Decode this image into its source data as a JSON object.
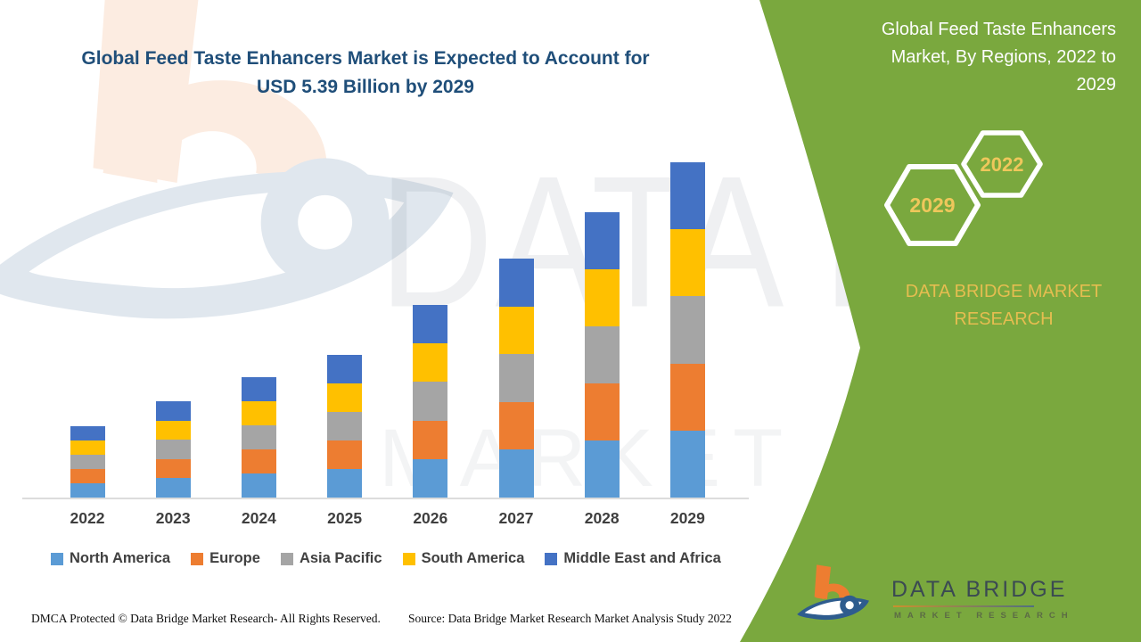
{
  "main_title": {
    "line1": "Global Feed Taste Enhancers Market is Expected to Account for",
    "line2": "USD 5.39 Billion by 2029"
  },
  "green_panel": {
    "bg_color": "#7aa83e",
    "title_lines": [
      "Global Feed Taste Enhancers",
      "Market, By Regions, 2022 to",
      "2029"
    ],
    "hexagons": [
      {
        "label": "2022"
      },
      {
        "label": "2029"
      }
    ],
    "hex_label_color": "#efc75b",
    "brand_line1": "DATA BRIDGE MARKET",
    "brand_line2": "RESEARCH",
    "logo_name": "DATA BRIDGE",
    "logo_sub": "MARKET RESEARCH"
  },
  "chart_data": {
    "type": "bar",
    "stacked": true,
    "title": "Global Feed Taste Enhancers Market is Expected to Account for USD 5.39 Billion by 2029",
    "unit": "USD Billion",
    "xlabel": "",
    "ylabel": "",
    "grid": false,
    "legend_position": "bottom",
    "categories": [
      "2022",
      "2023",
      "2024",
      "2025",
      "2026",
      "2027",
      "2028",
      "2029"
    ],
    "series": [
      {
        "name": "North America",
        "color": "#5b9bd5",
        "values": [
          0.23,
          0.31,
          0.39,
          0.46,
          0.62,
          0.77,
          0.92,
          1.08
        ]
      },
      {
        "name": "Europe",
        "color": "#ed7d31",
        "values": [
          0.23,
          0.31,
          0.39,
          0.46,
          0.62,
          0.77,
          0.92,
          1.08
        ]
      },
      {
        "name": "Asia Pacific",
        "color": "#a5a5a5",
        "values": [
          0.23,
          0.31,
          0.39,
          0.46,
          0.62,
          0.77,
          0.92,
          1.08
        ]
      },
      {
        "name": "South America",
        "color": "#ffc000",
        "values": [
          0.23,
          0.31,
          0.39,
          0.46,
          0.62,
          0.77,
          0.92,
          1.08
        ]
      },
      {
        "name": "Middle East and Africa",
        "color": "#4472c4",
        "values": [
          0.23,
          0.31,
          0.39,
          0.46,
          0.62,
          0.77,
          0.92,
          1.08
        ]
      }
    ],
    "totals_estimated_usd_billion": [
      1.15,
      1.55,
      1.95,
      2.3,
      3.1,
      3.85,
      4.6,
      5.4
    ],
    "final_value_label": "USD 5.39 Billion by 2029"
  },
  "watermark": {
    "text_line1": "DATA BRIDGE",
    "text_line2": "MARKET RESEARCH"
  },
  "footer": {
    "dmca": "DMCA Protected © Data Bridge Market Research- All Rights Reserved.",
    "source": "Source: Data Bridge Market Research Market Analysis Study 2022"
  }
}
